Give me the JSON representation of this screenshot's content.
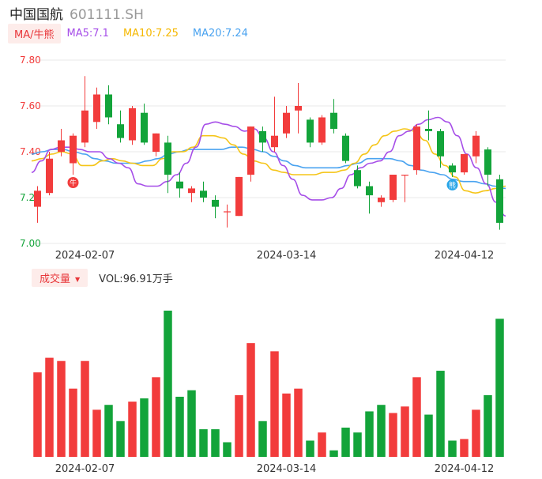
{
  "header": {
    "name": "中国国航",
    "code": "601111.SH"
  },
  "legend": {
    "indicator_label": "MA/牛熊",
    "ma5": "MA5:7.1",
    "ma10": "MA10:7.25",
    "ma20": "MA20:7.24"
  },
  "volume_header": {
    "label": "成交量",
    "vol_text": "VOL:96.91万手"
  },
  "colors": {
    "up": "#f23c3c",
    "down": "#13a43a",
    "ma5": "#a64ee8",
    "ma10": "#f5c518",
    "ma20": "#4aa3f0",
    "grid": "#e8e8e8",
    "axis_text": "#666666"
  },
  "chart_data": [
    {
      "type": "candlestick",
      "ylim": [
        7.0,
        7.8
      ],
      "y_ticks": [
        "7.80",
        "7.60",
        "7.40",
        "7.20",
        "7.00"
      ],
      "x_tick_labels": [
        {
          "index": 4,
          "label": "2024-02-07"
        },
        {
          "index": 21,
          "label": "2024-03-14"
        },
        {
          "index": 36,
          "label": "2024-04-12"
        }
      ],
      "candles": [
        {
          "o": 7.16,
          "c": 7.23,
          "h": 7.25,
          "l": 7.09
        },
        {
          "o": 7.22,
          "c": 7.37,
          "h": 7.4,
          "l": 7.21
        },
        {
          "o": 7.4,
          "c": 7.45,
          "h": 7.5,
          "l": 7.38
        },
        {
          "o": 7.35,
          "c": 7.47,
          "h": 7.48,
          "l": 7.3
        },
        {
          "o": 7.44,
          "c": 7.58,
          "h": 7.73,
          "l": 7.42
        },
        {
          "o": 7.53,
          "c": 7.65,
          "h": 7.68,
          "l": 7.5
        },
        {
          "o": 7.65,
          "c": 7.55,
          "h": 7.69,
          "l": 7.52
        },
        {
          "o": 7.52,
          "c": 7.46,
          "h": 7.58,
          "l": 7.44
        },
        {
          "o": 7.45,
          "c": 7.59,
          "h": 7.6,
          "l": 7.43
        },
        {
          "o": 7.57,
          "c": 7.44,
          "h": 7.61,
          "l": 7.43
        },
        {
          "o": 7.4,
          "c": 7.48,
          "h": 7.48,
          "l": 7.38
        },
        {
          "o": 7.44,
          "c": 7.3,
          "h": 7.47,
          "l": 7.22
        },
        {
          "o": 7.27,
          "c": 7.24,
          "h": 7.31,
          "l": 7.2
        },
        {
          "o": 7.22,
          "c": 7.24,
          "h": 7.25,
          "l": 7.18
        },
        {
          "o": 7.23,
          "c": 7.2,
          "h": 7.27,
          "l": 7.18
        },
        {
          "o": 7.19,
          "c": 7.16,
          "h": 7.21,
          "l": 7.11
        },
        {
          "o": 7.14,
          "c": 7.14,
          "h": 7.17,
          "l": 7.07
        },
        {
          "o": 7.12,
          "c": 7.29,
          "h": 7.29,
          "l": 7.12
        },
        {
          "o": 7.3,
          "c": 7.51,
          "h": 7.51,
          "l": 7.27
        },
        {
          "o": 7.49,
          "c": 7.44,
          "h": 7.51,
          "l": 7.4
        },
        {
          "o": 7.42,
          "c": 7.47,
          "h": 7.64,
          "l": 7.4
        },
        {
          "o": 7.48,
          "c": 7.57,
          "h": 7.6,
          "l": 7.46
        },
        {
          "o": 7.58,
          "c": 7.6,
          "h": 7.7,
          "l": 7.48
        },
        {
          "o": 7.54,
          "c": 7.44,
          "h": 7.55,
          "l": 7.42
        },
        {
          "o": 7.44,
          "c": 7.55,
          "h": 7.56,
          "l": 7.43
        },
        {
          "o": 7.57,
          "c": 7.5,
          "h": 7.63,
          "l": 7.48
        },
        {
          "o": 7.47,
          "c": 7.36,
          "h": 7.48,
          "l": 7.35
        },
        {
          "o": 7.32,
          "c": 7.25,
          "h": 7.34,
          "l": 7.24
        },
        {
          "o": 7.25,
          "c": 7.21,
          "h": 7.27,
          "l": 7.13
        },
        {
          "o": 7.18,
          "c": 7.2,
          "h": 7.21,
          "l": 7.16
        },
        {
          "o": 7.19,
          "c": 7.3,
          "h": 7.3,
          "l": 7.18
        },
        {
          "o": 7.3,
          "c": 7.3,
          "h": 7.3,
          "l": 7.18
        },
        {
          "o": 7.32,
          "c": 7.51,
          "h": 7.52,
          "l": 7.3
        },
        {
          "o": 7.5,
          "c": 7.49,
          "h": 7.58,
          "l": 7.45
        },
        {
          "o": 7.49,
          "c": 7.38,
          "h": 7.5,
          "l": 7.33
        },
        {
          "o": 7.34,
          "c": 7.31,
          "h": 7.35,
          "l": 7.29
        },
        {
          "o": 7.31,
          "c": 7.39,
          "h": 7.39,
          "l": 7.3
        },
        {
          "o": 7.38,
          "c": 7.47,
          "h": 7.49,
          "l": 7.35
        },
        {
          "o": 7.41,
          "c": 7.3,
          "h": 7.42,
          "l": 7.25
        },
        {
          "o": 7.28,
          "c": 7.09,
          "h": 7.3,
          "l": 7.06
        }
      ],
      "ma5": [
        7.31,
        7.36,
        7.41,
        7.42,
        7.42,
        7.41,
        7.4,
        7.4,
        7.37,
        7.35,
        7.33,
        7.26,
        7.25,
        7.25,
        7.27,
        7.3,
        7.35,
        7.42,
        7.52,
        7.53,
        7.52,
        7.51,
        7.49,
        7.5,
        7.46,
        7.4,
        7.34,
        7.28,
        7.21,
        7.19,
        7.19,
        7.2,
        7.24,
        7.3,
        7.33,
        7.35,
        7.36,
        7.4,
        7.47,
        7.49,
        7.52,
        7.54,
        7.55,
        7.53,
        7.47,
        7.39,
        7.33,
        7.26,
        7.18,
        7.12
      ],
      "ma10": [
        7.36,
        7.37,
        7.39,
        7.4,
        7.39,
        7.34,
        7.34,
        7.36,
        7.37,
        7.36,
        7.35,
        7.34,
        7.34,
        7.37,
        7.4,
        7.4,
        7.42,
        7.47,
        7.47,
        7.46,
        7.43,
        7.39,
        7.36,
        7.35,
        7.32,
        7.31,
        7.3,
        7.3,
        7.3,
        7.31,
        7.31,
        7.32,
        7.35,
        7.39,
        7.43,
        7.47,
        7.49,
        7.5,
        7.49,
        7.45,
        7.39,
        7.34,
        7.29,
        7.23,
        7.22,
        7.23,
        7.24,
        7.25
      ],
      "ma20": [
        7.39,
        7.4,
        7.41,
        7.41,
        7.4,
        7.39,
        7.37,
        7.36,
        7.35,
        7.35,
        7.35,
        7.36,
        7.37,
        7.39,
        7.4,
        7.41,
        7.41,
        7.41,
        7.41,
        7.42,
        7.42,
        7.41,
        7.4,
        7.38,
        7.36,
        7.34,
        7.33,
        7.33,
        7.33,
        7.33,
        7.34,
        7.35,
        7.37,
        7.37,
        7.37,
        7.36,
        7.34,
        7.32,
        7.31,
        7.3,
        7.28,
        7.27,
        7.27,
        7.26,
        7.25,
        7.24
      ],
      "markers": [
        {
          "index": 3,
          "label": "牛",
          "color": "#f23c3c"
        },
        {
          "index": 35,
          "label": "熊",
          "color": "#2aa6e8"
        }
      ]
    },
    {
      "type": "bar",
      "x_tick_labels": [
        {
          "index": 4,
          "label": "2024-02-07"
        },
        {
          "index": 21,
          "label": "2024-03-14"
        },
        {
          "index": 36,
          "label": "2024-04-12"
        }
      ],
      "values": [
        52,
        61,
        59,
        42,
        59,
        29,
        32,
        22,
        34,
        36,
        49,
        90,
        37,
        41,
        17,
        17,
        9,
        38,
        70,
        22,
        65,
        39,
        42,
        10,
        15,
        4,
        18,
        15,
        28,
        32,
        27,
        31,
        49,
        26,
        53,
        10,
        11,
        29,
        38,
        85
      ],
      "directions": [
        "up",
        "up",
        "up",
        "up",
        "up",
        "up",
        "down",
        "down",
        "up",
        "down",
        "up",
        "down",
        "down",
        "down",
        "down",
        "down",
        "down",
        "up",
        "up",
        "down",
        "up",
        "up",
        "up",
        "down",
        "up",
        "down",
        "down",
        "down",
        "down",
        "down",
        "up",
        "up",
        "up",
        "down",
        "down",
        "down",
        "up",
        "up",
        "down",
        "down"
      ]
    }
  ]
}
